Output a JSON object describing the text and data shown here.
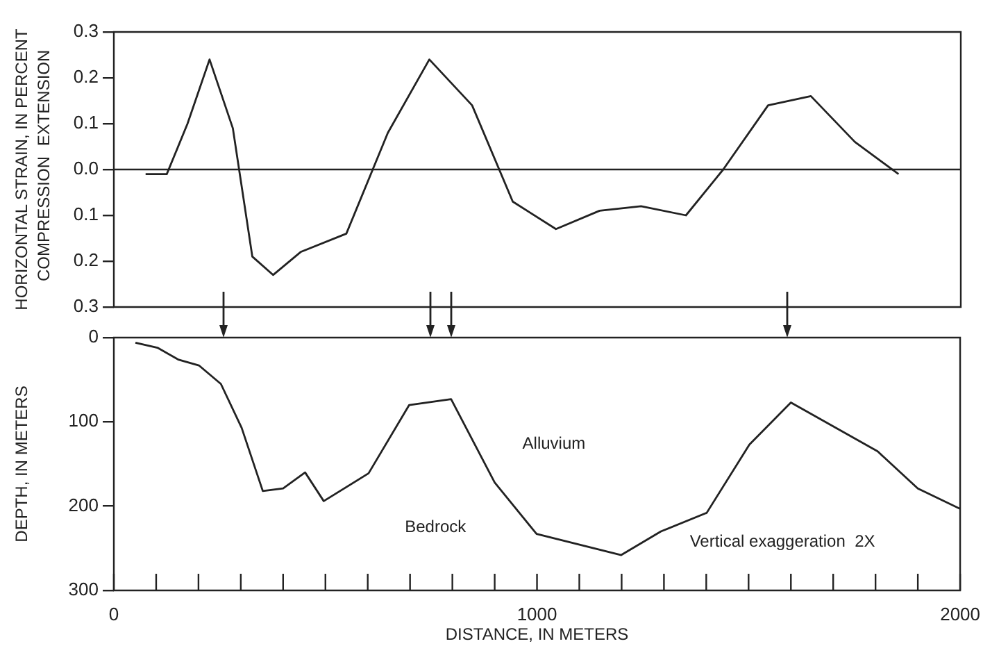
{
  "chart_data": [
    {
      "type": "line",
      "ylabel": "HORIZONTAL STRAIN, IN PERCENT",
      "annotations": [
        "COMPRESSION",
        "EXTENSION"
      ],
      "tick_labels": "y",
      "xlim": [
        0,
        2000
      ],
      "ylim": [
        -0.3,
        0.3
      ],
      "yticks": [
        {
          "value": -0.3,
          "label": "0.3"
        },
        {
          "value": -0.2,
          "label": "0.2"
        },
        {
          "value": -0.1,
          "label": "0.1"
        },
        {
          "value": 0,
          "label": "0.0"
        },
        {
          "value": 0.1,
          "label": "0.1"
        },
        {
          "value": 0.2,
          "label": "0.2"
        },
        {
          "value": 0.3,
          "label": "0.3"
        }
      ],
      "ref_lines": [
        {
          "axis": "y",
          "value": 0
        }
      ],
      "series": [
        {
          "color": "#222222",
          "x": [
            75,
            125,
            174,
            226,
            281,
            327,
            376,
            441,
            549,
            647,
            745,
            846,
            942,
            1044,
            1147,
            1245,
            1351,
            1439,
            1545,
            1646,
            1750,
            1853
          ],
          "values": [
            -0.01,
            -0.01,
            0.1,
            0.24,
            0.09,
            -0.19,
            -0.23,
            -0.18,
            -0.14,
            0.08,
            0.24,
            0.14,
            -0.07,
            -0.13,
            -0.09,
            -0.08,
            -0.1,
            0,
            0.14,
            0.16,
            0.06,
            -0.01
          ]
        }
      ]
    },
    {
      "type": "line",
      "xlabel": "DISTANCE, IN METERS",
      "ylabel": "DEPTH, IN METERS",
      "xlim": [
        0,
        2000
      ],
      "ylim": [
        300,
        0
      ],
      "yticks": [
        0,
        100,
        200,
        300
      ],
      "xticks": [
        0,
        {
          "value": 100,
          "label": null
        },
        {
          "value": 200,
          "label": null
        },
        {
          "value": 300,
          "label": null
        },
        {
          "value": 400,
          "label": null
        },
        {
          "value": 500,
          "label": null
        },
        {
          "value": 600,
          "label": null
        },
        {
          "value": 700,
          "label": null
        },
        {
          "value": 800,
          "label": null
        },
        {
          "value": 900,
          "label": null
        },
        1000,
        {
          "value": 1100,
          "label": null
        },
        {
          "value": 1200,
          "label": null
        },
        {
          "value": 1300,
          "label": null
        },
        {
          "value": 1400,
          "label": null
        },
        {
          "value": 1500,
          "label": null
        },
        {
          "value": 1600,
          "label": null
        },
        {
          "value": 1700,
          "label": null
        },
        {
          "value": 1800,
          "label": null
        },
        {
          "value": 1900,
          "label": null
        },
        2000
      ],
      "annotations": [
        "Alluvium",
        "Bedrock",
        "Vertical exaggeration  2X"
      ],
      "series": [
        {
          "color": "#222222",
          "x": [
            51,
            103,
            152,
            201,
            253,
            302,
            352,
            400,
            452,
            496,
            602,
            698,
            797,
            900,
            999,
            1199,
            1293,
            1401,
            1502,
            1600,
            1805,
            1900,
            1999
          ],
          "values": [
            6,
            12,
            26,
            33,
            55,
            107,
            182,
            179,
            160,
            194,
            161,
            80,
            73,
            172,
            233,
            258,
            230,
            208,
            127,
            77,
            135,
            179,
            203
          ]
        }
      ]
    }
  ]
}
